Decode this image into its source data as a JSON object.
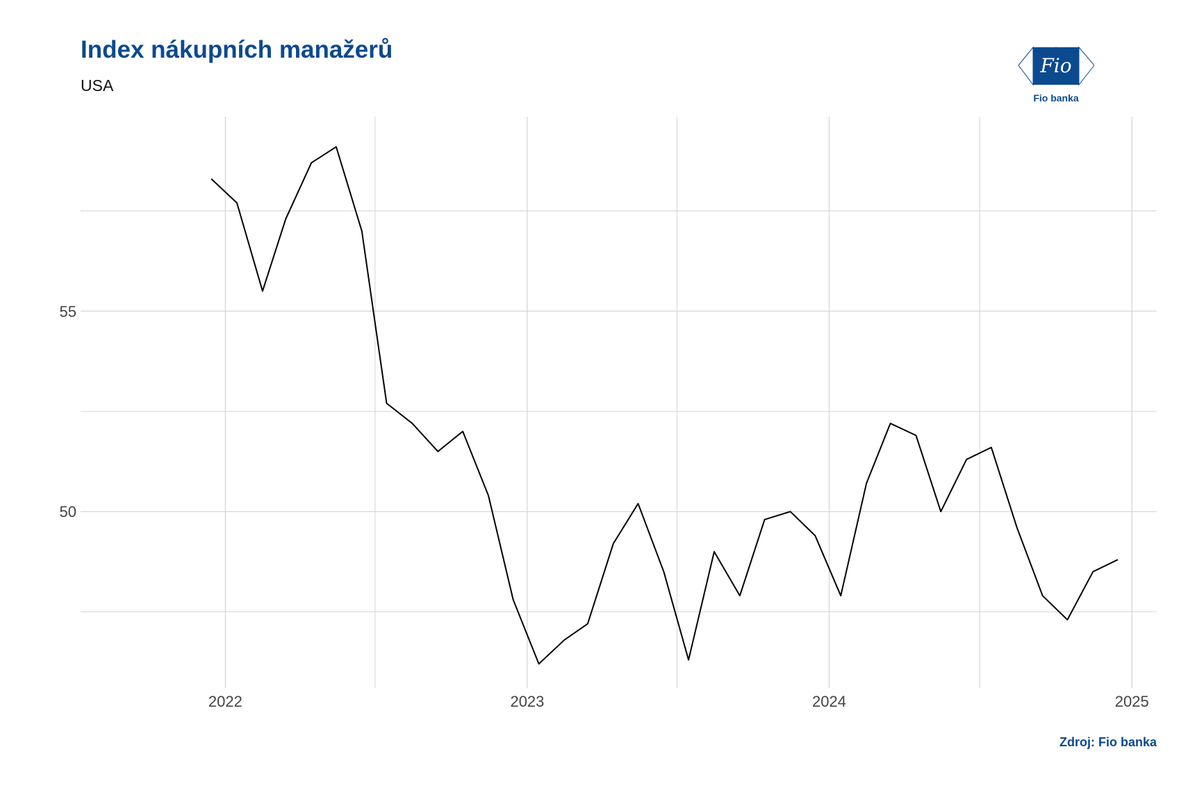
{
  "title": "Index nákupních manažerů",
  "subtitle": "USA",
  "logo": {
    "brand_text": "Fio",
    "caption": "Fio banka",
    "color": "#0b4a8f"
  },
  "source": "Zdroj: Fio banka",
  "chart_data": {
    "type": "line",
    "title": "Index nákupních manažerů",
    "subtitle": "USA",
    "xlabel": "",
    "ylabel": "",
    "x_ticks": [
      "2022",
      "2023",
      "2024",
      "2025"
    ],
    "y_ticks": [
      50,
      55
    ],
    "xlim": [
      "2021-07-10",
      "2025-01-31"
    ],
    "ylim": [
      45.6,
      59.85
    ],
    "grid": true,
    "line_color": "#000000",
    "series": [
      {
        "x": [
          "2021-12",
          "2022-01",
          "2022-02",
          "2022-03",
          "2022-04",
          "2022-05",
          "2022-06",
          "2022-07",
          "2022-08",
          "2022-09",
          "2022-10",
          "2022-11",
          "2022-12",
          "2023-01",
          "2023-02",
          "2023-03",
          "2023-04",
          "2023-05",
          "2023-06",
          "2023-07",
          "2023-08",
          "2023-09",
          "2023-10",
          "2023-11",
          "2023-12",
          "2024-01",
          "2024-02",
          "2024-03",
          "2024-04",
          "2024-05",
          "2024-06",
          "2024-07",
          "2024-08",
          "2024-09",
          "2024-10",
          "2024-11",
          "2024-12"
        ],
        "values": [
          58.3,
          57.7,
          55.5,
          57.3,
          58.7,
          59.1,
          57.0,
          52.7,
          52.2,
          51.5,
          52.0,
          50.4,
          47.8,
          46.2,
          46.8,
          47.2,
          49.2,
          50.2,
          48.5,
          46.3,
          49.0,
          47.9,
          49.8,
          50.0,
          49.4,
          47.9,
          50.7,
          52.2,
          51.9,
          50.0,
          51.3,
          51.6,
          49.6,
          47.9,
          47.3,
          48.5,
          48.8
        ]
      }
    ]
  }
}
